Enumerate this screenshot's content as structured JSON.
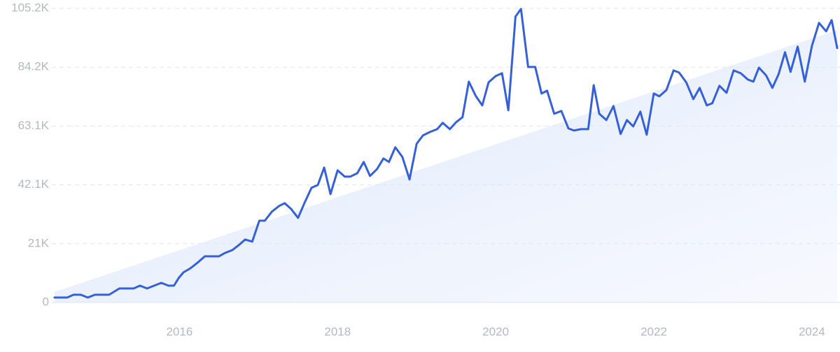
{
  "chart_data": {
    "type": "line",
    "x": [
      2014.42,
      2014.58,
      2014.66,
      2014.75,
      2014.84,
      2014.93,
      2015.11,
      2015.24,
      2015.33,
      2015.42,
      2015.5,
      2015.59,
      2015.77,
      2015.86,
      2015.93,
      2015.99,
      2016.05,
      2016.14,
      2016.23,
      2016.32,
      2016.41,
      2016.5,
      2016.58,
      2016.67,
      2016.75,
      2016.83,
      2016.92,
      2017.01,
      2017.08,
      2017.17,
      2017.26,
      2017.33,
      2017.41,
      2017.5,
      2017.58,
      2017.67,
      2017.75,
      2017.83,
      2017.91,
      2018.0,
      2018.09,
      2018.16,
      2018.25,
      2018.33,
      2018.41,
      2018.5,
      2018.58,
      2018.65,
      2018.73,
      2018.82,
      2018.91,
      2019.0,
      2019.08,
      2019.17,
      2019.26,
      2019.33,
      2019.42,
      2019.5,
      2019.58,
      2019.66,
      2019.75,
      2019.83,
      2019.91,
      2020.0,
      2020.08,
      2020.16,
      2020.25,
      2020.32,
      2020.41,
      2020.5,
      2020.58,
      2020.65,
      2020.74,
      2020.83,
      2020.92,
      2020.99,
      2021.08,
      2021.17,
      2021.24,
      2021.31,
      2021.4,
      2021.49,
      2021.58,
      2021.66,
      2021.74,
      2021.83,
      2021.91,
      2022.0,
      2022.07,
      2022.16,
      2022.25,
      2022.32,
      2022.41,
      2022.5,
      2022.58,
      2022.67,
      2022.74,
      2022.83,
      2022.92,
      2023.01,
      2023.1,
      2023.19,
      2023.26,
      2023.33,
      2023.42,
      2023.5,
      2023.58,
      2023.66,
      2023.73,
      2023.82,
      2023.91,
      2024.0,
      2024.09,
      2024.18,
      2024.25,
      2024.32
    ],
    "series": [
      {
        "color": "#3560d8",
        "values": [
          1750,
          1750,
          2750,
          2750,
          1750,
          2750,
          2750,
          5000,
          5000,
          5000,
          6000,
          5000,
          7000,
          6000,
          6000,
          8750,
          10750,
          12250,
          14250,
          16500,
          16500,
          16500,
          17750,
          18750,
          20500,
          22500,
          21750,
          29250,
          29250,
          32500,
          34500,
          35500,
          33500,
          30250,
          35500,
          41000,
          42000,
          48250,
          38750,
          47250,
          45000,
          45000,
          46250,
          50250,
          45250,
          47750,
          51500,
          50250,
          55500,
          52000,
          44000,
          56750,
          59750,
          61000,
          62000,
          64250,
          62000,
          64500,
          66250,
          79000,
          73750,
          70500,
          78750,
          81000,
          82000,
          68750,
          102250,
          105000,
          84250,
          84250,
          74750,
          75750,
          67500,
          68500,
          62250,
          61500,
          62000,
          62000,
          77750,
          67500,
          65250,
          70250,
          60250,
          65250,
          63000,
          68250,
          60000,
          74750,
          73750,
          76000,
          83000,
          82250,
          78750,
          72750,
          76750,
          70500,
          71250,
          77500,
          75000,
          83000,
          82000,
          79750,
          79000,
          84000,
          81250,
          76750,
          81750,
          89500,
          82500,
          91500,
          79000,
          91750,
          100000,
          97000,
          101000,
          91000
        ]
      }
    ],
    "xlim": [
      2014.42,
      2024.32
    ],
    "xticks": [
      2016,
      2018,
      2020,
      2022,
      2024
    ],
    "ylim": [
      0,
      105200
    ],
    "yticks": [
      0,
      {
        "value": 21040,
        "label": "21K"
      },
      {
        "value": 42080,
        "label": "42.1K"
      },
      {
        "value": 63120,
        "label": "63.1K"
      },
      {
        "value": 84160,
        "label": "84.2K"
      },
      {
        "value": 105200,
        "label": "105.2K"
      }
    ],
    "grid": true
  }
}
